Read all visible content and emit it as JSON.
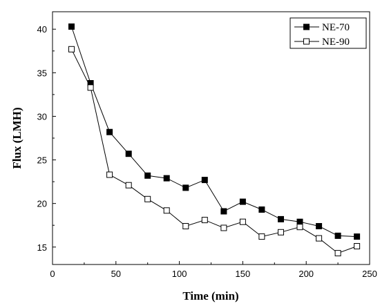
{
  "chart_data": {
    "type": "line",
    "xlabel": "Time (min)",
    "ylabel": "Flux (LMH)",
    "xlim": [
      0,
      250
    ],
    "ylim": [
      13,
      42
    ],
    "xticks": [
      0,
      50,
      100,
      150,
      200,
      250
    ],
    "yticks": [
      15,
      20,
      25,
      30,
      35,
      40
    ],
    "grid": false,
    "legend_position": "top-right",
    "x": [
      15,
      30,
      45,
      60,
      75,
      90,
      105,
      120,
      135,
      150,
      165,
      180,
      195,
      210,
      225,
      240
    ],
    "series": [
      {
        "name": "NE-70",
        "marker": "filled-square",
        "color": "#000000",
        "values": [
          40.3,
          33.8,
          28.2,
          25.7,
          23.2,
          22.9,
          21.8,
          22.7,
          19.1,
          20.2,
          19.3,
          18.2,
          17.9,
          17.4,
          16.3,
          16.2
        ]
      },
      {
        "name": "NE-90",
        "marker": "open-square",
        "color": "#000000",
        "values": [
          37.7,
          33.3,
          23.3,
          22.1,
          20.5,
          19.2,
          17.4,
          18.1,
          17.2,
          17.9,
          16.2,
          16.7,
          17.3,
          16.0,
          14.3,
          15.1
        ]
      }
    ]
  }
}
